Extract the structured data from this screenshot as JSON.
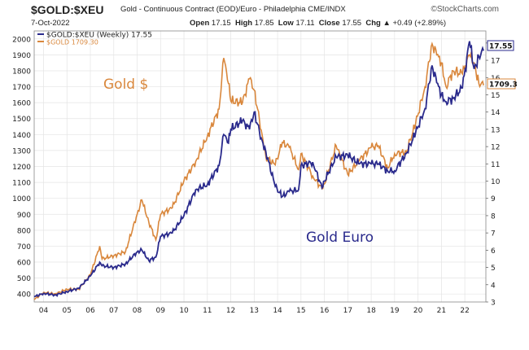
{
  "header": {
    "symbol": "$GOLD:$XEU",
    "description": "Gold - Continuous Contract (EOD)/Euro - Philadelphia CME/INDX",
    "brand": "©StockCharts.com",
    "date": "7-Oct-2022",
    "open_label": "Open",
    "open": "17.15",
    "high_label": "High",
    "high": "17.85",
    "low_label": "Low",
    "low": "17.11",
    "close_label": "Close",
    "close": "17.55",
    "chg_label": "Chg",
    "chg": "+0.49 (+2.89%)",
    "chg_arrow": "▲"
  },
  "legend": {
    "entry1": "$GOLD:$XEU (Weekly) 17.55",
    "entry2": "$GOLD 1709.30"
  },
  "annotations": {
    "gold_usd": "Gold $",
    "gold_euro": "Gold Euro"
  },
  "last_values": {
    "euro": "17.55",
    "usd": "1709.30",
    "usd_display": "1709.3"
  },
  "colors": {
    "usd": "#d9873c",
    "euro": "#2a2a8c",
    "grid": "#e4e4e4",
    "axis": "#555555"
  },
  "chart_data": {
    "type": "line",
    "title": "$GOLD:$XEU Gold - Continuous Contract (EOD)/Euro",
    "x_ticks": [
      "04",
      "05",
      "06",
      "07",
      "08",
      "09",
      "10",
      "11",
      "12",
      "13",
      "14",
      "15",
      "16",
      "17",
      "18",
      "19",
      "20",
      "21",
      "22"
    ],
    "xlim": [
      2003.6,
      2022.9
    ],
    "left_axis": {
      "ylim": [
        350,
        2050
      ],
      "ticks": [
        400,
        500,
        600,
        700,
        800,
        900,
        1000,
        1100,
        1200,
        1300,
        1400,
        1500,
        1600,
        1700,
        1800,
        1900,
        2000
      ]
    },
    "right_axis": {
      "ylim": [
        3,
        18.7
      ],
      "ticks": [
        3,
        4,
        5,
        6,
        7,
        8,
        9,
        10,
        11,
        12,
        13,
        14,
        15,
        16,
        17,
        18
      ]
    },
    "series": [
      {
        "name": "$GOLD 1709.30",
        "axis": "left",
        "x": [
          2003.6,
          2004.0,
          2004.5,
          2005.0,
          2005.5,
          2006.0,
          2006.4,
          2006.5,
          2007.0,
          2007.5,
          2008.0,
          2008.2,
          2008.5,
          2008.8,
          2009.0,
          2009.5,
          2010.0,
          2010.5,
          2011.0,
          2011.5,
          2011.7,
          2011.9,
          2012.0,
          2012.5,
          2012.8,
          2013.0,
          2013.3,
          2013.5,
          2013.9,
          2014.2,
          2014.5,
          2014.9,
          2015.0,
          2015.5,
          2015.9,
          2016.0,
          2016.5,
          2017.0,
          2017.5,
          2018.0,
          2018.3,
          2018.7,
          2019.0,
          2019.5,
          2019.9,
          2020.3,
          2020.6,
          2020.8,
          2021.0,
          2021.2,
          2021.5,
          2021.9,
          2022.2,
          2022.4,
          2022.6,
          2022.8
        ],
        "values": [
          365,
          410,
          400,
          430,
          430,
          520,
          700,
          620,
          640,
          665,
          900,
          990,
          850,
          740,
          900,
          940,
          1110,
          1230,
          1390,
          1560,
          1880,
          1720,
          1610,
          1600,
          1750,
          1680,
          1430,
          1260,
          1210,
          1350,
          1320,
          1180,
          1280,
          1140,
          1060,
          1090,
          1330,
          1150,
          1240,
          1320,
          1330,
          1190,
          1280,
          1290,
          1470,
          1700,
          1970,
          1900,
          1850,
          1700,
          1800,
          1780,
          1900,
          1850,
          1720,
          1709
        ]
      },
      {
        "name": "$GOLD:$XEU (Weekly) 17.55",
        "axis": "right",
        "x": [
          2003.6,
          2004.0,
          2004.5,
          2005.0,
          2005.5,
          2006.0,
          2006.4,
          2006.5,
          2007.0,
          2007.5,
          2008.0,
          2008.2,
          2008.5,
          2008.8,
          2009.0,
          2009.5,
          2010.0,
          2010.5,
          2011.0,
          2011.5,
          2011.7,
          2011.9,
          2012.0,
          2012.5,
          2012.8,
          2013.0,
          2013.3,
          2013.5,
          2013.9,
          2014.2,
          2014.5,
          2014.9,
          2015.0,
          2015.5,
          2015.9,
          2016.0,
          2016.5,
          2017.0,
          2017.5,
          2018.0,
          2018.3,
          2018.7,
          2019.0,
          2019.5,
          2019.9,
          2020.3,
          2020.6,
          2020.8,
          2021.0,
          2021.2,
          2021.5,
          2021.9,
          2022.2,
          2022.4,
          2022.6,
          2022.8
        ],
        "values": [
          3.3,
          3.5,
          3.4,
          3.6,
          3.8,
          4.5,
          5.3,
          5.1,
          5.0,
          5.2,
          5.9,
          6.0,
          5.4,
          5.6,
          6.8,
          7.0,
          8.0,
          9.5,
          9.8,
          10.9,
          12.7,
          12.2,
          13.0,
          13.5,
          13.0,
          14.0,
          12.5,
          11.7,
          9.7,
          9.1,
          9.4,
          9.5,
          10.9,
          11.1,
          9.6,
          10.0,
          11.4,
          11.5,
          11.0,
          11.0,
          11.0,
          10.6,
          10.6,
          11.6,
          12.8,
          14.2,
          16.7,
          15.7,
          15.0,
          14.6,
          14.8,
          15.4,
          18.1,
          16.5,
          17.2,
          17.55
        ]
      }
    ]
  }
}
